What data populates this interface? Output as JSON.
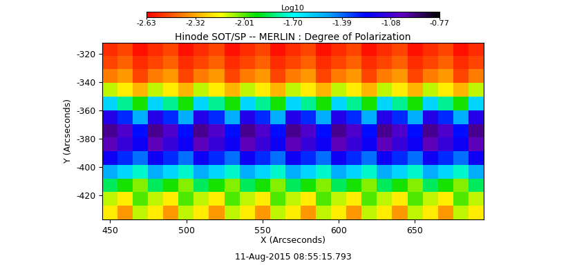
{
  "chart_data": {
    "type": "heatmap",
    "title": "Hinode SOT/SP -- MERLIN : Degree of Polarization",
    "x_label": "X (Arcseconds)",
    "y_label": "Y (Arcseconds)",
    "annotation": "11-Aug-2015 08:55:15.793",
    "xlim": [
      445,
      695
    ],
    "xticks": [
      450,
      500,
      550,
      600,
      650
    ],
    "ylim": [
      -437,
      -312
    ],
    "yticks": [
      -420,
      -400,
      -380,
      -360,
      -340,
      -320
    ],
    "color_label": "Log10",
    "color_range": [
      -2.63,
      -0.77
    ],
    "color_ticks": [
      -2.63,
      -2.32,
      -2.01,
      {
        "value": -1.7,
        "label": "-1.70"
      },
      -1.39,
      -1.08,
      -0.77
    ],
    "cells": [
      [
        -2.55,
        -2.5,
        -2.6,
        -2.55,
        -2.5,
        -2.6,
        -2.55,
        -2.5,
        -2.6,
        -2.55,
        -2.5,
        -2.6,
        -2.55,
        -2.5,
        -2.6,
        -2.55,
        -2.5,
        -2.6,
        -2.55,
        -2.5,
        -2.6,
        -2.55,
        -2.5,
        -2.6,
        -2.55
      ],
      [
        -2.5,
        -2.45,
        -2.55,
        -2.5,
        -2.45,
        -2.55,
        -2.5,
        -2.45,
        -2.55,
        -2.5,
        -2.45,
        -2.55,
        -2.5,
        -2.45,
        -2.55,
        -2.5,
        -2.45,
        -2.55,
        -2.5,
        -2.45,
        -2.55,
        -2.5,
        -2.45,
        -2.55,
        -2.5
      ],
      [
        -2.4,
        -2.35,
        -2.5,
        -2.4,
        -2.35,
        -2.5,
        -2.4,
        -2.35,
        -2.5,
        -2.4,
        -2.35,
        -2.5,
        -2.4,
        -2.35,
        -2.5,
        -2.4,
        -2.35,
        -2.5,
        -2.4,
        -2.35,
        -2.5,
        -2.4,
        -2.35,
        -2.5,
        -2.4
      ],
      [
        -2.1,
        -2.2,
        -2.3,
        -2.1,
        -2.2,
        -2.3,
        -2.1,
        -2.2,
        -2.3,
        -2.1,
        -2.2,
        -2.3,
        -2.1,
        -2.2,
        -2.3,
        -2.1,
        -2.2,
        -2.3,
        -2.1,
        -2.2,
        -2.3,
        -2.1,
        -2.2,
        -2.3,
        -2.1
      ],
      [
        -1.6,
        -1.8,
        -1.95,
        -1.6,
        -1.8,
        -1.95,
        -1.6,
        -1.8,
        -1.95,
        -1.6,
        -1.8,
        -1.95,
        -1.6,
        -1.8,
        -1.95,
        -1.6,
        -1.8,
        -1.95,
        -1.6,
        -1.8,
        -1.95,
        -1.6,
        -1.8,
        -1.95,
        -1.6
      ],
      [
        -1.15,
        -1.3,
        -1.5,
        -1.15,
        -1.3,
        -1.5,
        -1.15,
        -1.3,
        -1.5,
        -1.15,
        -1.3,
        -1.5,
        -1.15,
        -1.3,
        -1.5,
        -1.15,
        -1.3,
        -1.5,
        -1.15,
        -1.3,
        -1.5,
        -1.15,
        -1.3,
        -1.5,
        -1.15
      ],
      [
        -0.95,
        -1.05,
        -1.25,
        -0.95,
        -1.05,
        -1.25,
        -0.95,
        -1.05,
        -1.25,
        -0.95,
        -1.05,
        -1.25,
        -0.95,
        -1.05,
        -1.25,
        -0.95,
        -1.05,
        -1.25,
        -0.95,
        -1.05,
        -1.25,
        -0.95,
        -1.05,
        -1.25,
        -0.95
      ],
      [
        -1.0,
        -1.1,
        -1.2,
        -1.0,
        -1.1,
        -1.2,
        -1.0,
        -1.1,
        -1.2,
        -1.0,
        -1.1,
        -1.2,
        -1.0,
        -1.1,
        -1.2,
        -1.0,
        -1.1,
        -1.2,
        -1.0,
        -1.1,
        -1.2,
        -1.0,
        -1.1,
        -1.2,
        -1.0
      ],
      [
        -1.2,
        -1.3,
        -1.4,
        -1.2,
        -1.3,
        -1.4,
        -1.2,
        -1.3,
        -1.4,
        -1.2,
        -1.3,
        -1.4,
        -1.2,
        -1.3,
        -1.4,
        -1.2,
        -1.3,
        -1.4,
        -1.2,
        -1.3,
        -1.4,
        -1.2,
        -1.3,
        -1.4,
        -1.2
      ],
      [
        -1.5,
        -1.6,
        -1.75,
        -1.5,
        -1.6,
        -1.75,
        -1.5,
        -1.6,
        -1.75,
        -1.5,
        -1.6,
        -1.75,
        -1.5,
        -1.6,
        -1.75,
        -1.5,
        -1.6,
        -1.75,
        -1.5,
        -1.6,
        -1.75,
        -1.5,
        -1.6,
        -1.75,
        -1.5
      ],
      [
        -1.85,
        -1.95,
        -2.05,
        -1.85,
        -1.95,
        -2.05,
        -1.85,
        -1.95,
        -2.05,
        -1.85,
        -1.95,
        -2.05,
        -1.85,
        -1.95,
        -2.05,
        -1.85,
        -1.95,
        -2.05,
        -1.85,
        -1.95,
        -2.05,
        -1.85,
        -1.95,
        -2.05,
        -1.85
      ],
      [
        -2.1,
        -2.2,
        -2.0,
        -2.1,
        -2.2,
        -2.0,
        -2.1,
        -2.2,
        -2.0,
        -2.1,
        -2.2,
        -2.0,
        -2.1,
        -2.2,
        -2.0,
        -2.1,
        -2.2,
        -2.0,
        -2.1,
        -2.2,
        -2.0,
        -2.1,
        -2.2,
        -2.0,
        -2.1
      ],
      [
        -2.2,
        -2.35,
        -2.1,
        -2.2,
        -2.35,
        -2.1,
        -2.2,
        -2.35,
        -2.1,
        -2.2,
        -2.35,
        -2.1,
        -2.2,
        -2.35,
        -2.1,
        -2.2,
        -2.35,
        -2.1,
        -2.2,
        -2.35,
        -2.1,
        -2.2,
        -2.35,
        -2.1,
        -2.2
      ]
    ]
  }
}
